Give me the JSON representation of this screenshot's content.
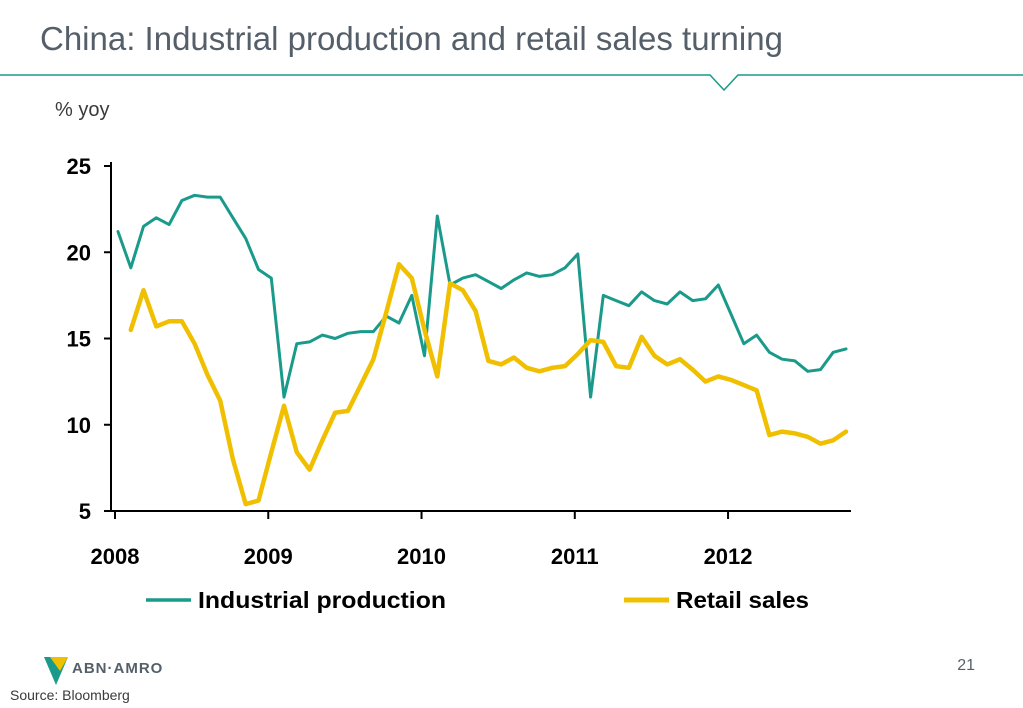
{
  "slide": {
    "title": "China: Industrial production and retail sales turning",
    "unit_label": "% yoy",
    "page_number": "21",
    "source": "Source: Bloomberg",
    "logo_text": "ABN·AMRO",
    "accent_color": "#1a9a8a"
  },
  "chart_data": {
    "type": "line",
    "x_ticks": [
      "2008",
      "2009",
      "2010",
      "2011",
      "2012"
    ],
    "y_ticks": [
      "5",
      "10",
      "15",
      "20",
      "25"
    ],
    "ylim": [
      5,
      25
    ],
    "xlim": [
      "2008-01",
      "2012-10"
    ],
    "grid": false,
    "legend_placement": "bottom",
    "series": [
      {
        "name": "Industrial production",
        "color": "#1a9a8a",
        "x": [
          "2008-01",
          "2008-02",
          "2008-03",
          "2008-04",
          "2008-05",
          "2008-06",
          "2008-07",
          "2008-08",
          "2008-09",
          "2008-10",
          "2008-11",
          "2008-12",
          "2009-01",
          "2009-02",
          "2009-03",
          "2009-04",
          "2009-05",
          "2009-06",
          "2009-07",
          "2009-08",
          "2009-09",
          "2009-10",
          "2009-11",
          "2009-12",
          "2010-01",
          "2010-02",
          "2010-03",
          "2010-04",
          "2010-05",
          "2010-06",
          "2010-07",
          "2010-08",
          "2010-09",
          "2010-10",
          "2010-11",
          "2010-12",
          "2011-01",
          "2011-02",
          "2011-03",
          "2011-04",
          "2011-05",
          "2011-06",
          "2011-07",
          "2011-08",
          "2011-09",
          "2011-10",
          "2011-11",
          "2011-12",
          "2012-01",
          "2012-02",
          "2012-03",
          "2012-04",
          "2012-05",
          "2012-06",
          "2012-07",
          "2012-08",
          "2012-09",
          "2012-10"
        ],
        "values": [
          21.2,
          19.1,
          21.5,
          22.0,
          21.6,
          23.0,
          23.3,
          23.2,
          23.2,
          22.0,
          20.8,
          19.0,
          18.5,
          11.6,
          14.7,
          14.8,
          15.2,
          15.0,
          15.3,
          15.4,
          15.4,
          16.3,
          15.9,
          17.5,
          14.0,
          22.1,
          18.1,
          18.5,
          18.7,
          18.3,
          17.9,
          18.4,
          18.8,
          18.6,
          18.7,
          19.1,
          19.9,
          11.6,
          17.5,
          17.2,
          16.9,
          17.7,
          17.2,
          17.0,
          17.7,
          17.2,
          17.3,
          18.1,
          16.4,
          14.7,
          15.2,
          14.2,
          13.8,
          13.7,
          13.1,
          13.2,
          14.2,
          14.4
        ]
      },
      {
        "name": "Retail sales",
        "color": "#f0c000",
        "x": [
          "2008-02",
          "2008-03",
          "2008-04",
          "2008-05",
          "2008-06",
          "2008-07",
          "2008-08",
          "2008-09",
          "2008-10",
          "2008-11",
          "2008-12",
          "2009-01",
          "2009-02",
          "2009-03",
          "2009-04",
          "2009-05",
          "2009-06",
          "2009-07",
          "2009-08",
          "2009-09",
          "2009-10",
          "2009-11",
          "2009-12",
          "2010-01",
          "2010-02",
          "2010-03",
          "2010-04",
          "2010-05",
          "2010-06",
          "2010-07",
          "2010-08",
          "2010-09",
          "2010-10",
          "2010-11",
          "2010-12",
          "2011-01",
          "2011-02",
          "2011-03",
          "2011-04",
          "2011-05",
          "2011-06",
          "2011-07",
          "2011-08",
          "2011-09",
          "2011-10",
          "2011-11",
          "2011-12",
          "2012-01",
          "2012-02",
          "2012-03",
          "2012-04",
          "2012-05",
          "2012-06",
          "2012-07",
          "2012-08",
          "2012-09",
          "2012-10"
        ],
        "values": [
          15.5,
          17.8,
          15.7,
          16.0,
          16.0,
          14.7,
          12.9,
          11.4,
          8.0,
          5.4,
          5.6,
          8.4,
          11.1,
          8.4,
          7.4,
          9.1,
          10.7,
          10.8,
          12.3,
          13.8,
          16.5,
          19.3,
          18.5,
          15.5,
          12.8,
          18.2,
          17.8,
          16.6,
          13.7,
          13.5,
          13.9,
          13.3,
          13.1,
          13.3,
          13.4,
          14.1,
          14.9,
          14.8,
          13.4,
          13.3,
          15.1,
          14.0,
          13.5,
          13.8,
          13.2,
          12.5,
          12.8,
          12.6,
          12.3,
          12.0,
          9.4,
          9.6,
          9.5,
          9.3,
          8.9,
          9.1,
          9.6
        ]
      }
    ]
  }
}
